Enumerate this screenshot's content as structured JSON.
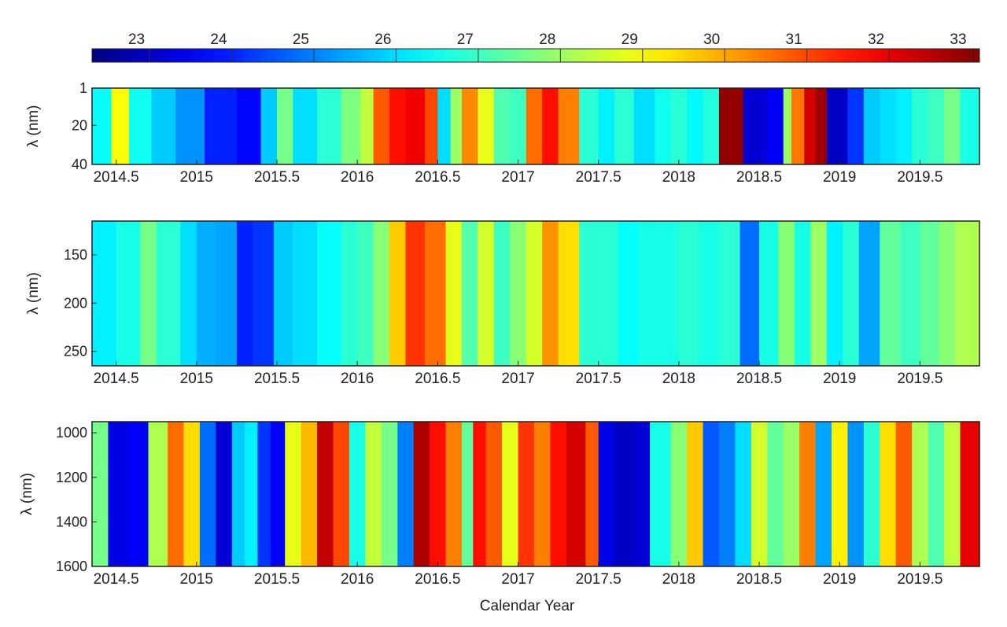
{
  "chart_data": {
    "type": "heatmap",
    "xlabel": "Calendar Year",
    "colorbar": {
      "ticks": [
        "23",
        "24",
        "25",
        "26",
        "27",
        "28",
        "29",
        "30",
        "31",
        "32",
        "33"
      ],
      "range": [
        22.3,
        33.1
      ],
      "colormap": "jet"
    },
    "x_ticks": [
      "2014.5",
      "2015",
      "2015.5",
      "2016",
      "2016.5",
      "2017",
      "2017.5",
      "2018",
      "2018.5",
      "2019",
      "2019.5"
    ],
    "x_tick_values": [
      2014.5,
      2015,
      2015.5,
      2016,
      2016.5,
      2017,
      2017.5,
      2018,
      2018.5,
      2019,
      2019.5
    ],
    "panels": [
      {
        "id": "uv",
        "ylabel": "λ (nm)",
        "y_ticks": [
          "1",
          "20",
          "40"
        ],
        "y_tick_values": [
          1,
          20,
          40
        ],
        "ylim": [
          1,
          40
        ],
        "xlim": [
          2014.35,
          2019.87
        ],
        "columns": [
          [
            2014.35,
            26.4
          ],
          [
            2014.47,
            29.0
          ],
          [
            2014.58,
            26.5
          ],
          [
            2014.72,
            25.8
          ],
          [
            2014.87,
            25.2
          ],
          [
            2015.05,
            24.0
          ],
          [
            2015.25,
            23.7
          ],
          [
            2015.4,
            25.8
          ],
          [
            2015.5,
            27.6
          ],
          [
            2015.6,
            26.0
          ],
          [
            2015.75,
            26.8
          ],
          [
            2015.9,
            27.7
          ],
          [
            2016.02,
            28.4
          ],
          [
            2016.1,
            30.8
          ],
          [
            2016.2,
            31.6
          ],
          [
            2016.3,
            31.9
          ],
          [
            2016.42,
            31.0
          ],
          [
            2016.5,
            26.0
          ],
          [
            2016.58,
            28.0
          ],
          [
            2016.65,
            30.3
          ],
          [
            2016.75,
            28.8
          ],
          [
            2016.85,
            27.2
          ],
          [
            2016.95,
            27.0
          ],
          [
            2017.05,
            30.6
          ],
          [
            2017.15,
            31.6
          ],
          [
            2017.25,
            30.4
          ],
          [
            2017.38,
            26.8
          ],
          [
            2017.5,
            26.2
          ],
          [
            2017.6,
            26.8
          ],
          [
            2017.72,
            26.0
          ],
          [
            2017.85,
            26.5
          ],
          [
            2017.95,
            26.8
          ],
          [
            2018.05,
            26.3
          ],
          [
            2018.15,
            26.7
          ],
          [
            2018.25,
            32.9
          ],
          [
            2018.32,
            32.9
          ],
          [
            2018.4,
            23.2
          ],
          [
            2018.55,
            23.6
          ],
          [
            2018.65,
            28.0
          ],
          [
            2018.7,
            30.5
          ],
          [
            2018.78,
            32.2
          ],
          [
            2018.85,
            32.8
          ],
          [
            2018.92,
            23.0
          ],
          [
            2019.05,
            24.2
          ],
          [
            2019.15,
            25.8
          ],
          [
            2019.25,
            26.0
          ],
          [
            2019.35,
            26.2
          ],
          [
            2019.45,
            26.8
          ],
          [
            2019.55,
            27.0
          ],
          [
            2019.65,
            27.6
          ],
          [
            2019.75,
            26.6
          ],
          [
            2019.87,
            26.2
          ]
        ]
      },
      {
        "id": "vis",
        "ylabel": "λ (nm)",
        "y_ticks": [
          "150",
          "200",
          "250"
        ],
        "y_tick_values": [
          150,
          200,
          250
        ],
        "ylim": [
          115,
          265
        ],
        "xlim": [
          2014.35,
          2019.87
        ],
        "columns": [
          [
            2014.35,
            26.2
          ],
          [
            2014.5,
            26.6
          ],
          [
            2014.65,
            27.6
          ],
          [
            2014.75,
            26.8
          ],
          [
            2014.9,
            26.0
          ],
          [
            2015.0,
            25.5
          ],
          [
            2015.12,
            25.4
          ],
          [
            2015.25,
            24.0
          ],
          [
            2015.35,
            24.2
          ],
          [
            2015.48,
            25.8
          ],
          [
            2015.6,
            26.0
          ],
          [
            2015.75,
            26.4
          ],
          [
            2015.9,
            26.8
          ],
          [
            2016.0,
            27.0
          ],
          [
            2016.1,
            27.8
          ],
          [
            2016.2,
            29.6
          ],
          [
            2016.3,
            31.2
          ],
          [
            2016.42,
            30.6
          ],
          [
            2016.55,
            28.8
          ],
          [
            2016.65,
            27.2
          ],
          [
            2016.75,
            28.6
          ],
          [
            2016.85,
            27.0
          ],
          [
            2016.95,
            27.8
          ],
          [
            2017.05,
            28.6
          ],
          [
            2017.15,
            30.2
          ],
          [
            2017.25,
            29.4
          ],
          [
            2017.38,
            26.8
          ],
          [
            2017.5,
            26.8
          ],
          [
            2017.62,
            26.4
          ],
          [
            2017.75,
            26.6
          ],
          [
            2017.88,
            26.6
          ],
          [
            2018.0,
            26.8
          ],
          [
            2018.12,
            26.6
          ],
          [
            2018.25,
            26.8
          ],
          [
            2018.38,
            24.8
          ],
          [
            2018.5,
            26.6
          ],
          [
            2018.62,
            27.8
          ],
          [
            2018.72,
            26.6
          ],
          [
            2018.82,
            28.0
          ],
          [
            2018.92,
            26.2
          ],
          [
            2019.02,
            26.8
          ],
          [
            2019.12,
            25.4
          ],
          [
            2019.25,
            27.4
          ],
          [
            2019.38,
            27.0
          ],
          [
            2019.5,
            27.4
          ],
          [
            2019.62,
            27.8
          ],
          [
            2019.72,
            28.2
          ],
          [
            2019.87,
            28.4
          ]
        ]
      },
      {
        "id": "nir",
        "ylabel": "λ (nm)",
        "y_ticks": [
          "1000",
          "1200",
          "1400",
          "1600"
        ],
        "y_tick_values": [
          1000,
          1200,
          1400,
          1600
        ],
        "ylim": [
          950,
          1600
        ],
        "xlim": [
          2014.35,
          2019.87
        ],
        "columns": [
          [
            2014.35,
            27.6
          ],
          [
            2014.45,
            23.4
          ],
          [
            2014.58,
            23.6
          ],
          [
            2014.7,
            28.2
          ],
          [
            2014.82,
            30.6
          ],
          [
            2014.92,
            29.4
          ],
          [
            2015.02,
            24.8
          ],
          [
            2015.12,
            23.2
          ],
          [
            2015.22,
            25.8
          ],
          [
            2015.3,
            26.2
          ],
          [
            2015.38,
            24.2
          ],
          [
            2015.46,
            23.6
          ],
          [
            2015.55,
            28.8
          ],
          [
            2015.65,
            29.8
          ],
          [
            2015.75,
            32.4
          ],
          [
            2015.85,
            31.0
          ],
          [
            2015.95,
            26.6
          ],
          [
            2016.05,
            28.4
          ],
          [
            2016.15,
            27.6
          ],
          [
            2016.25,
            25.0
          ],
          [
            2016.35,
            32.6
          ],
          [
            2016.45,
            31.6
          ],
          [
            2016.55,
            30.4
          ],
          [
            2016.65,
            27.4
          ],
          [
            2016.72,
            31.6
          ],
          [
            2016.8,
            30.8
          ],
          [
            2016.9,
            28.8
          ],
          [
            2017.0,
            31.2
          ],
          [
            2017.1,
            30.4
          ],
          [
            2017.2,
            31.6
          ],
          [
            2017.3,
            32.2
          ],
          [
            2017.42,
            30.8
          ],
          [
            2017.5,
            23.4
          ],
          [
            2017.6,
            23.0
          ],
          [
            2017.72,
            23.2
          ],
          [
            2017.82,
            26.6
          ],
          [
            2017.95,
            27.8
          ],
          [
            2018.05,
            29.6
          ],
          [
            2018.15,
            24.6
          ],
          [
            2018.25,
            25.0
          ],
          [
            2018.35,
            26.0
          ],
          [
            2018.45,
            28.6
          ],
          [
            2018.55,
            27.4
          ],
          [
            2018.65,
            28.0
          ],
          [
            2018.75,
            30.4
          ],
          [
            2018.85,
            25.4
          ],
          [
            2018.95,
            29.2
          ],
          [
            2019.05,
            25.2
          ],
          [
            2019.15,
            26.8
          ],
          [
            2019.25,
            29.4
          ],
          [
            2019.35,
            30.8
          ],
          [
            2019.45,
            28.2
          ],
          [
            2019.55,
            27.2
          ],
          [
            2019.65,
            28.4
          ],
          [
            2019.75,
            32.0
          ],
          [
            2019.87,
            31.8
          ]
        ]
      }
    ]
  }
}
